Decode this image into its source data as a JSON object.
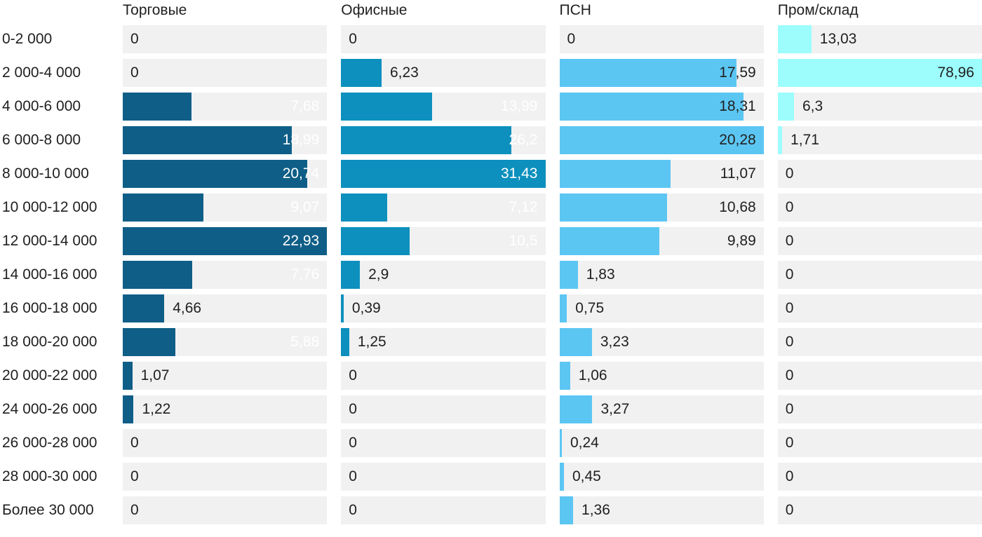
{
  "chart_data": {
    "type": "bar",
    "orientation": "horizontal",
    "title": "",
    "xlabel": "",
    "ylabel": "",
    "grid": false,
    "legend_position": "column-headers-top",
    "scaling": "bars normalized to each column's max value",
    "track_color": "#f1f1f1",
    "text_color": "#1f1f1f",
    "categories": [
      "0-2 000",
      "2 000-4 000",
      "4 000-6 000",
      "6 000-8 000",
      "8 000-10 000",
      "10 000-12 000",
      "12 000-14 000",
      "14 000-16 000",
      "16 000-18 000",
      "18 000-20 000",
      "20 000-22 000",
      "24 000-26 000",
      "26 000-28 000",
      "28 000-30 000",
      "Более 30 000"
    ],
    "series": [
      {
        "name": "Торговые",
        "color": "#0f5e87",
        "inside_label_color": "#ffffff",
        "values": [
          "0",
          "0",
          "7,68",
          "18,99",
          "20,74",
          "9,07",
          "22,93",
          "7,76",
          "4,66",
          "5,88",
          "1,07",
          "1,22",
          "0",
          "0",
          "0"
        ]
      },
      {
        "name": "Офисные",
        "color": "#0d90bd",
        "inside_label_color": "#ffffff",
        "values": [
          "0",
          "6,23",
          "13,99",
          "26,2",
          "31,43",
          "7,12",
          "10,5",
          "2,9",
          "0,39",
          "1,25",
          "0",
          "0",
          "0",
          "0",
          "0"
        ]
      },
      {
        "name": "ПСН",
        "color": "#5cc6f3",
        "inside_label_color": "#1f1f1f",
        "values": [
          "0",
          "17,59",
          "18,31",
          "20,28",
          "11,07",
          "10,68",
          "9,89",
          "1,83",
          "0,75",
          "3,23",
          "1,06",
          "3,27",
          "0,24",
          "0,45",
          "1,36"
        ]
      },
      {
        "name": "Пром/склад",
        "color": "#9dfdfd",
        "inside_label_color": "#1f1f1f",
        "values": [
          "13,03",
          "78,96",
          "6,3",
          "1,71",
          "0",
          "0",
          "0",
          "0",
          "0",
          "0",
          "0",
          "0",
          "0",
          "0",
          "0"
        ]
      }
    ]
  }
}
